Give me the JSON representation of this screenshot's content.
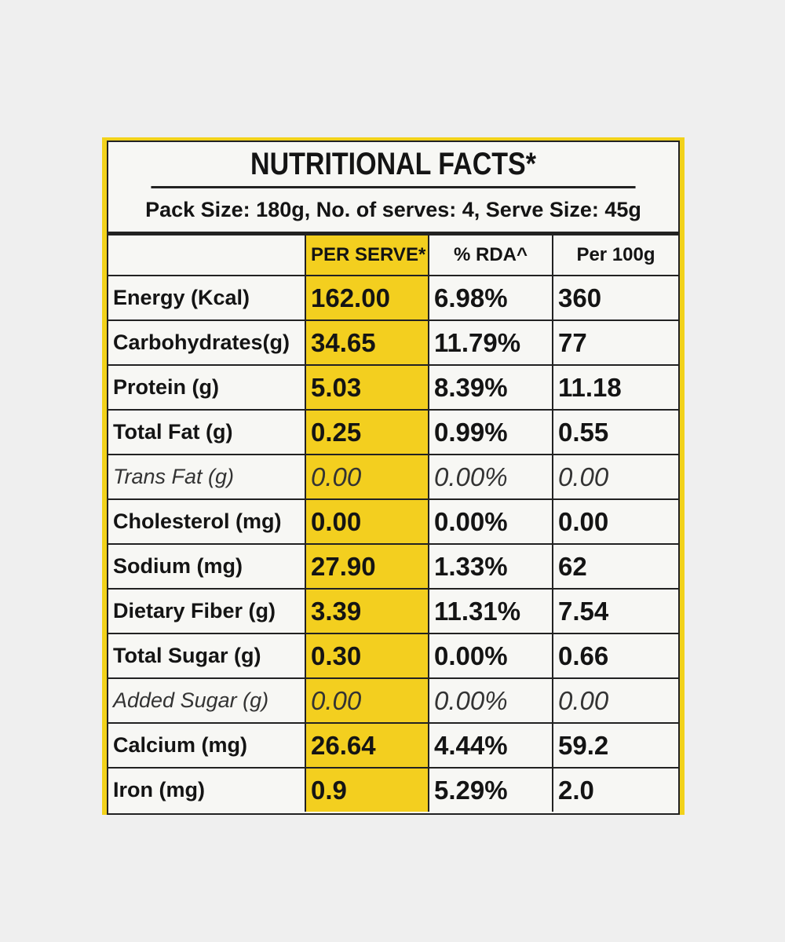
{
  "label": {
    "title": "NUTRITIONAL FACTS*",
    "pack_info": "Pack Size: 180g, No. of serves: 4, Serve Size: 45g",
    "headers": [
      "PER SERVE*",
      "% RDA^",
      "Per 100g"
    ],
    "rows": [
      {
        "nutrient": "Energy (Kcal)",
        "per_serve": "162.00",
        "rda": "6.98%",
        "per_100g": "360",
        "italic": false
      },
      {
        "nutrient": "Carbohydrates(g)",
        "per_serve": "34.65",
        "rda": "11.79%",
        "per_100g": "77",
        "italic": false
      },
      {
        "nutrient": "Protein (g)",
        "per_serve": "5.03",
        "rda": "8.39%",
        "per_100g": "11.18",
        "italic": false
      },
      {
        "nutrient": "Total Fat (g)",
        "per_serve": "0.25",
        "rda": "0.99%",
        "per_100g": "0.55",
        "italic": false
      },
      {
        "nutrient": "Trans Fat (g)",
        "per_serve": "0.00",
        "rda": "0.00%",
        "per_100g": "0.00",
        "italic": true
      },
      {
        "nutrient": "Cholesterol (mg)",
        "per_serve": "0.00",
        "rda": "0.00%",
        "per_100g": "0.00",
        "italic": false
      },
      {
        "nutrient": "Sodium (mg)",
        "per_serve": "27.90",
        "rda": "1.33%",
        "per_100g": "62",
        "italic": false
      },
      {
        "nutrient": "Dietary Fiber (g)",
        "per_serve": "3.39",
        "rda": "11.31%",
        "per_100g": "7.54",
        "italic": false
      },
      {
        "nutrient": "Total Sugar (g)",
        "per_serve": "0.30",
        "rda": "0.00%",
        "per_100g": "0.66",
        "italic": false
      },
      {
        "nutrient": "Added Sugar (g)",
        "per_serve": "0.00",
        "rda": "0.00%",
        "per_100g": "0.00",
        "italic": true
      },
      {
        "nutrient": "Calcium (mg)",
        "per_serve": "26.64",
        "rda": "4.44%",
        "per_100g": "59.2",
        "italic": false
      },
      {
        "nutrient": "Iron (mg)",
        "per_serve": "0.9",
        "rda": "5.29%",
        "per_100g": "2.0",
        "italic": false
      }
    ]
  }
}
